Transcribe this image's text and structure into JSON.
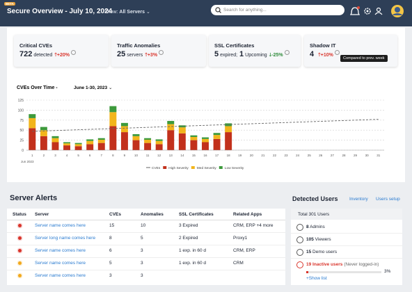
{
  "header": {
    "badge": "BETA",
    "title": "Secure Overview - July 10, 2024",
    "filter_label": "Show:",
    "filter_value": "All Servers",
    "search_placeholder": "Search for anything..."
  },
  "kpis": [
    {
      "title": "Critical CVEs",
      "value": "722",
      "unit": "detected",
      "change": "+20%",
      "direction": "up"
    },
    {
      "title": "Traffic Anomalies",
      "value": "25",
      "unit": "servers",
      "change": "+3%",
      "direction": "up"
    },
    {
      "title": "SSL Certificates",
      "value": "5",
      "unit": "expired;",
      "value2": "1",
      "unit2": "Upcoming",
      "change": "-25%",
      "direction": "down"
    },
    {
      "title": "Shadow IT",
      "value": "4",
      "change": "+10%",
      "direction": "up",
      "tooltip": "Compared to prev. week"
    }
  ],
  "chart_data": {
    "type": "bar",
    "stacked": true,
    "title": "CVEs Over Time -",
    "period": "June 1-30, 2023",
    "x_caption": "Jun 2023",
    "categories": [
      1,
      2,
      3,
      4,
      5,
      6,
      7,
      8,
      9,
      10,
      11,
      12,
      13,
      14,
      15,
      16,
      17,
      18,
      19,
      20,
      21,
      22,
      23,
      24,
      25,
      26,
      27,
      28,
      29,
      30,
      31
    ],
    "series": [
      {
        "name": "High Severity",
        "color": "#c2311c",
        "values": [
          55,
          35,
          20,
          12,
          10,
          15,
          18,
          60,
          45,
          25,
          18,
          15,
          50,
          42,
          25,
          20,
          28,
          45,
          null,
          null,
          null,
          null,
          null,
          null,
          null,
          null,
          null,
          null,
          null,
          null,
          null
        ]
      },
      {
        "name": "Med Severity",
        "color": "#f2b51c",
        "values": [
          25,
          15,
          10,
          5,
          5,
          8,
          8,
          35,
          15,
          10,
          8,
          8,
          15,
          15,
          8,
          8,
          10,
          15,
          null,
          null,
          null,
          null,
          null,
          null,
          null,
          null,
          null,
          null,
          null,
          null,
          null
        ]
      },
      {
        "name": "Low Severity",
        "color": "#3d9a3c",
        "values": [
          10,
          8,
          5,
          3,
          3,
          4,
          4,
          15,
          8,
          5,
          4,
          4,
          8,
          5,
          4,
          4,
          5,
          7,
          null,
          null,
          null,
          null,
          null,
          null,
          null,
          null,
          null,
          null,
          null,
          null,
          null
        ]
      }
    ],
    "trend": {
      "name": "CVEs",
      "color": "#666666",
      "x": [
        1,
        31
      ],
      "values": [
        47,
        77
      ]
    },
    "ylim": [
      0,
      125
    ],
    "yticks": [
      0,
      25,
      50,
      75,
      100,
      125
    ],
    "grid": true
  },
  "alerts": {
    "title": "Server Alerts",
    "columns": [
      "Status",
      "Server",
      "CVEs",
      "Anomalies",
      "SSL Certificates",
      "Related Apps"
    ],
    "rows": [
      {
        "status_color": "#d9342b",
        "cells": [
          "Server name comes here",
          "15",
          "10",
          "3 Expired",
          "CRM, ERP +4 more"
        ]
      },
      {
        "status_color": "#d9342b",
        "cells": [
          "Server long name comes here",
          "8",
          "5",
          "2 Expired",
          "Proxy1"
        ]
      },
      {
        "status_color": "#d9342b",
        "cells": [
          "Server name comes here",
          "6",
          "3",
          "1 exp. in 60 d",
          "CRM, ERP"
        ]
      },
      {
        "status_color": "#f2a81c",
        "cells": [
          "Server name comes here",
          "5",
          "3",
          "1 exp. in 60 d",
          "CRM"
        ]
      },
      {
        "status_color": "#f2a81c",
        "cells": [
          "Server name comes here",
          "3",
          "3"
        ]
      }
    ]
  },
  "users": {
    "title": "Detected Users",
    "links": [
      "Inventory",
      "Users setup"
    ],
    "total": "Total 301 Users",
    "items": [
      {
        "count": "8",
        "label": "Admins"
      },
      {
        "count": "105",
        "label": "Viewers"
      },
      {
        "count": "15",
        "label": "Demo users"
      }
    ],
    "inactive": {
      "count": "19",
      "label": "Inactive users",
      "note": "(Never logged-in)"
    },
    "progress": {
      "values": [
        3
      ],
      "value_labels": [
        "3%"
      ],
      "color": "#d9342b"
    },
    "show_list": "+Show list"
  }
}
